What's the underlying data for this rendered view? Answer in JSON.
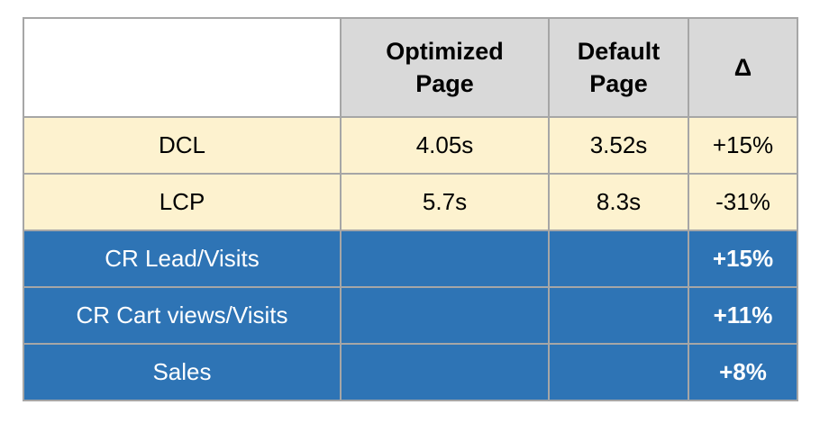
{
  "chart_data": {
    "type": "table",
    "columns": [
      "",
      "Optimized Page",
      "Default Page",
      "Δ"
    ],
    "rows": [
      {
        "label": "DCL",
        "optimized": "4.05s",
        "default": "3.52s",
        "delta": "+15%",
        "theme": "yellow"
      },
      {
        "label": "LCP",
        "optimized": "5.7s",
        "default": "8.3s",
        "delta": "-31%",
        "theme": "yellow"
      },
      {
        "label": "CR Lead/Visits",
        "optimized": "",
        "default": "",
        "delta": "+15%",
        "theme": "blue"
      },
      {
        "label": "CR Cart views/Visits",
        "optimized": "",
        "default": "",
        "delta": "+11%",
        "theme": "blue"
      },
      {
        "label": "Sales",
        "optimized": "",
        "default": "",
        "delta": "+8%",
        "theme": "blue"
      }
    ]
  },
  "colors": {
    "header_fill": "#d9d9d9",
    "yellow_row_fill": "#fdf2cf",
    "blue_row_fill": "#2e74b5",
    "border": "#a6a6a6",
    "header_text": "#000000",
    "yellow_row_text": "#000000",
    "blue_row_text": "#ffffff",
    "page_background": "#ffffff"
  }
}
